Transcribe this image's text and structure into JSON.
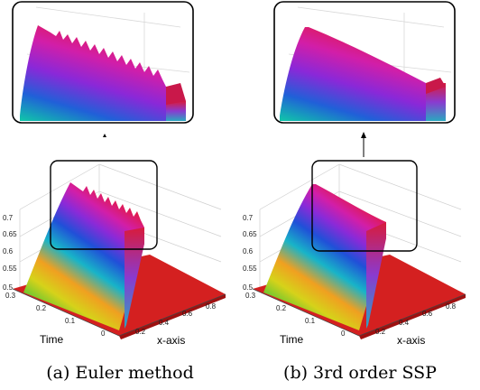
{
  "panels": [
    {
      "id": "left",
      "caption": "(a) Euler method",
      "xlabel": "x-axis",
      "ylabel": "Time",
      "z_ticks": [
        "0.7",
        "0.65",
        "0.6",
        "0.55",
        "0.5"
      ],
      "time_ticks": [
        "0.3",
        "0.2",
        "0.1",
        "0"
      ],
      "x_ticks": [
        "0.2",
        "0.4",
        "0.6",
        "0.8"
      ],
      "inset_shows_oscillations": true
    },
    {
      "id": "right",
      "caption": "(b) 3rd order SSP",
      "xlabel": "x-axis",
      "ylabel": "Time",
      "z_ticks": [
        "0.7",
        "0.65",
        "0.6",
        "0.55",
        "0.5"
      ],
      "time_ticks": [
        "0.3",
        "0.2",
        "0.1",
        "0"
      ],
      "x_ticks": [
        "0.2",
        "0.4",
        "0.6",
        "0.8"
      ],
      "inset_shows_oscillations": false
    }
  ],
  "colors": {
    "floor": "#d42020",
    "wall": "#d81b3c",
    "grid": "#d0d0d0",
    "box": "#000000"
  }
}
